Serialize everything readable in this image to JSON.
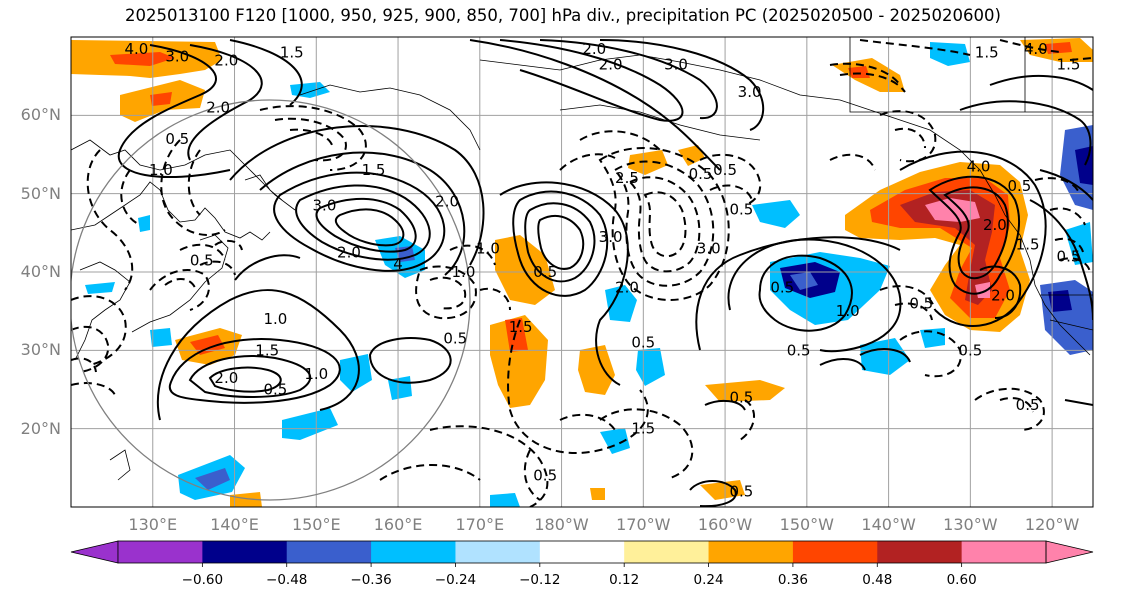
{
  "title": "2025013100 F120 [1000, 950, 925, 900, 850, 700] hPa div., precipitation PC (2025020500 - 2025020600)",
  "map": {
    "lon_range_deg_east": [
      120,
      245
    ],
    "lat_range": [
      10,
      70
    ],
    "lat_labels": [
      {
        "lat": 60,
        "text": "60°N"
      },
      {
        "lat": 50,
        "text": "50°N"
      },
      {
        "lat": 40,
        "text": "40°N"
      },
      {
        "lat": 30,
        "text": "30°N"
      },
      {
        "lat": 20,
        "text": "20°N"
      }
    ],
    "lon_labels": [
      {
        "lon": 130,
        "text": "130°E"
      },
      {
        "lon": 140,
        "text": "140°E"
      },
      {
        "lon": 150,
        "text": "150°E"
      },
      {
        "lon": 160,
        "text": "160°E"
      },
      {
        "lon": 170,
        "text": "170°E"
      },
      {
        "lon": 180,
        "text": "180°W"
      },
      {
        "lon": 190,
        "text": "170°W"
      },
      {
        "lon": 200,
        "text": "160°W"
      },
      {
        "lon": 210,
        "text": "150°W"
      },
      {
        "lon": 220,
        "text": "140°W"
      },
      {
        "lon": 230,
        "text": "130°W"
      },
      {
        "lon": 240,
        "text": "120°W"
      }
    ],
    "contour_labels": [
      {
        "lon": 128,
        "lat": 68.5,
        "text": "4.0"
      },
      {
        "lon": 133,
        "lat": 67.5,
        "text": "3.0"
      },
      {
        "lon": 139,
        "lat": 67.0,
        "text": "2.0"
      },
      {
        "lon": 147,
        "lat": 68.0,
        "text": "1.5"
      },
      {
        "lon": 138,
        "lat": 61.0,
        "text": "2.0"
      },
      {
        "lon": 133,
        "lat": 57.0,
        "text": "0.5"
      },
      {
        "lon": 131,
        "lat": 53.0,
        "text": "1.0"
      },
      {
        "lon": 157,
        "lat": 53.0,
        "text": "1.5"
      },
      {
        "lon": 151,
        "lat": 48.5,
        "text": "3.0"
      },
      {
        "lon": 166,
        "lat": 49.0,
        "text": "2.0"
      },
      {
        "lon": 154,
        "lat": 42.5,
        "text": "2.0"
      },
      {
        "lon": 160,
        "lat": 41.0,
        "text": "4"
      },
      {
        "lon": 136,
        "lat": 41.5,
        "text": "0.5"
      },
      {
        "lon": 168,
        "lat": 40.0,
        "text": "1.0"
      },
      {
        "lon": 171,
        "lat": 43.0,
        "text": "1.0"
      },
      {
        "lon": 145,
        "lat": 34.0,
        "text": "1.0"
      },
      {
        "lon": 144,
        "lat": 30.0,
        "text": "1.5"
      },
      {
        "lon": 139,
        "lat": 26.5,
        "text": "2.0"
      },
      {
        "lon": 145,
        "lat": 25.0,
        "text": "0.5"
      },
      {
        "lon": 150,
        "lat": 27.0,
        "text": "1.0"
      },
      {
        "lon": 167,
        "lat": 31.5,
        "text": "0.5"
      },
      {
        "lon": 175,
        "lat": 33.0,
        "text": "1.5"
      },
      {
        "lon": 178,
        "lat": 40.0,
        "text": "0.5"
      },
      {
        "lon": 186,
        "lat": 44.5,
        "text": "3.0"
      },
      {
        "lon": 188,
        "lat": 38.0,
        "text": "2.0"
      },
      {
        "lon": 188,
        "lat": 52.0,
        "text": "2.5"
      },
      {
        "lon": 198,
        "lat": 43.0,
        "text": "3.0"
      },
      {
        "lon": 184,
        "lat": 68.5,
        "text": "2.0"
      },
      {
        "lon": 186,
        "lat": 66.5,
        "text": "2.0"
      },
      {
        "lon": 194,
        "lat": 66.5,
        "text": "3.0"
      },
      {
        "lon": 203,
        "lat": 63.0,
        "text": "3.0"
      },
      {
        "lon": 200,
        "lat": 53.0,
        "text": "0.5"
      },
      {
        "lon": 197,
        "lat": 52.5,
        "text": "0.5"
      },
      {
        "lon": 202,
        "lat": 48.0,
        "text": "0.5"
      },
      {
        "lon": 207,
        "lat": 38.0,
        "text": "0.5"
      },
      {
        "lon": 190,
        "lat": 31.0,
        "text": "0.5"
      },
      {
        "lon": 209,
        "lat": 30.0,
        "text": "0.5"
      },
      {
        "lon": 202,
        "lat": 24.0,
        "text": "0.5"
      },
      {
        "lon": 190,
        "lat": 20.0,
        "text": "1.5"
      },
      {
        "lon": 178,
        "lat": 14.0,
        "text": "0.5"
      },
      {
        "lon": 202,
        "lat": 12.0,
        "text": "0.5"
      },
      {
        "lon": 215,
        "lat": 35.0,
        "text": "1.0"
      },
      {
        "lon": 224,
        "lat": 36.0,
        "text": "0.5"
      },
      {
        "lon": 230,
        "lat": 30.0,
        "text": "0.5"
      },
      {
        "lon": 237,
        "lat": 23.0,
        "text": "0.5"
      },
      {
        "lon": 231,
        "lat": 53.5,
        "text": "4.0"
      },
      {
        "lon": 233,
        "lat": 46.0,
        "text": "2.0"
      },
      {
        "lon": 237,
        "lat": 43.5,
        "text": "1.5"
      },
      {
        "lon": 242,
        "lat": 42.0,
        "text": "0.5"
      },
      {
        "lon": 234,
        "lat": 37.0,
        "text": "2.0"
      },
      {
        "lon": 236,
        "lat": 51.0,
        "text": "0.5"
      },
      {
        "lon": 232,
        "lat": 68.0,
        "text": "1.5"
      },
      {
        "lon": 238,
        "lat": 68.5,
        "text": "4.0"
      },
      {
        "lon": 242,
        "lat": 66.5,
        "text": "1.5"
      }
    ]
  },
  "colorbar": {
    "colors": [
      "#9a32cd",
      "#00008b",
      "#3a5fcd",
      "#00bfff",
      "#b0e2ff",
      "#ffffff",
      "#fff09a",
      "#ffa500",
      "#ff4500",
      "#b22222",
      "#ff82ab",
      "#ff82ab"
    ],
    "labels": [
      "−0.60",
      "−0.48",
      "−0.36",
      "−0.24",
      "−0.12",
      "0.12",
      "0.24",
      "0.36",
      "0.48",
      "0.60"
    ]
  },
  "colors": {
    "land_outline": "#000000",
    "grid": "#a0a0a0",
    "contour": "#000000",
    "tick_label": "#808080"
  }
}
